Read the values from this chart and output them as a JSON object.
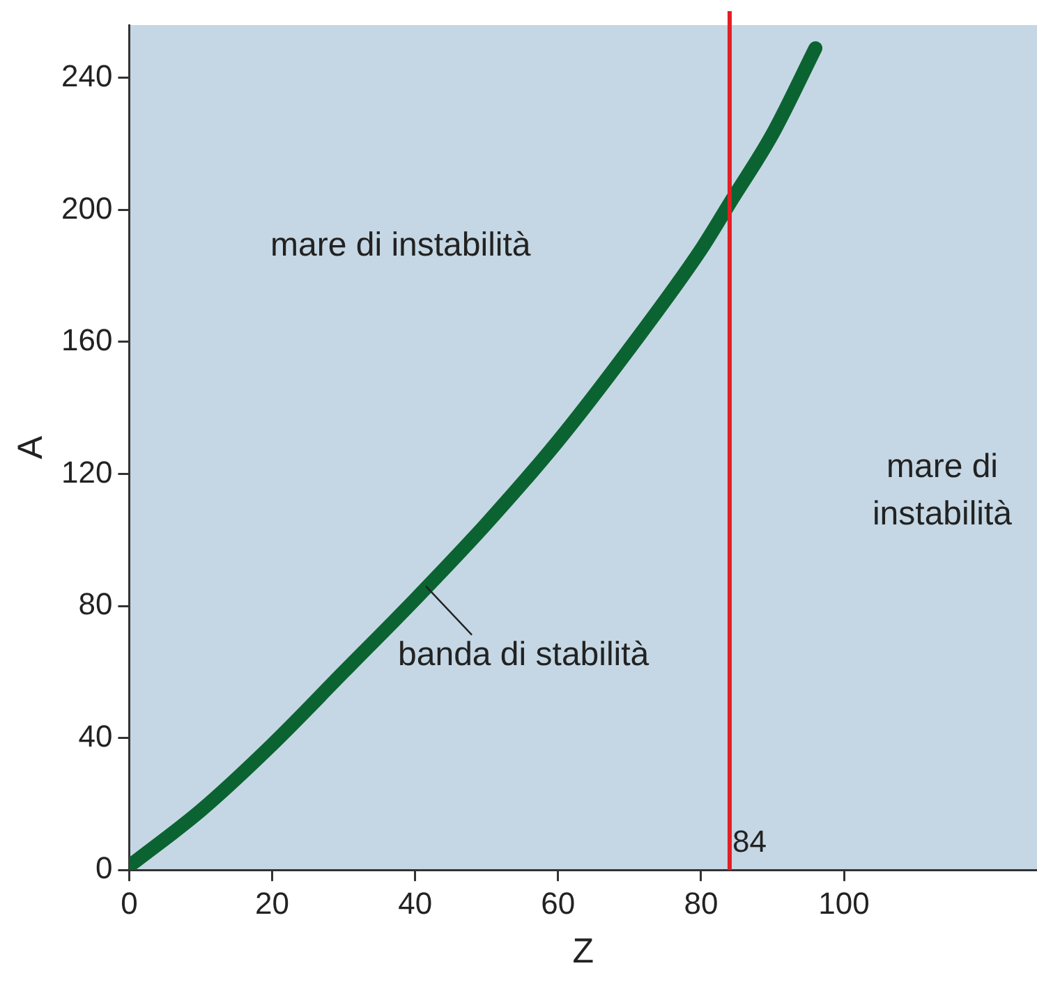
{
  "chart_data": {
    "type": "line",
    "xlabel": "Z",
    "ylabel": "A",
    "x": [
      0.5,
      10,
      20,
      30,
      40,
      50,
      60,
      70,
      80,
      84,
      90,
      96
    ],
    "series": [
      {
        "color": "#0b6331",
        "values": [
          2,
          18,
          38,
          60,
          82,
          105,
          130,
          158,
          188,
          202,
          223,
          249
        ]
      }
    ],
    "xlim": [
      0,
      127
    ],
    "ylim": [
      0,
      256
    ],
    "xticks": [
      0,
      20,
      40,
      60,
      80,
      100
    ],
    "yticks": [
      0,
      40,
      80,
      120,
      160,
      200,
      240
    ],
    "grid": false,
    "legend": false,
    "marker": "none",
    "line_style": "solid",
    "ref_lines": [
      {
        "axis": "x",
        "value": 84,
        "label": "84",
        "color": "#e31e24"
      }
    ],
    "annotations": [
      "mare di instabilità",
      "mare di instabilità",
      {
        "text": "banda di stabilità",
        "x": 41.5,
        "y": 86
      }
    ]
  }
}
